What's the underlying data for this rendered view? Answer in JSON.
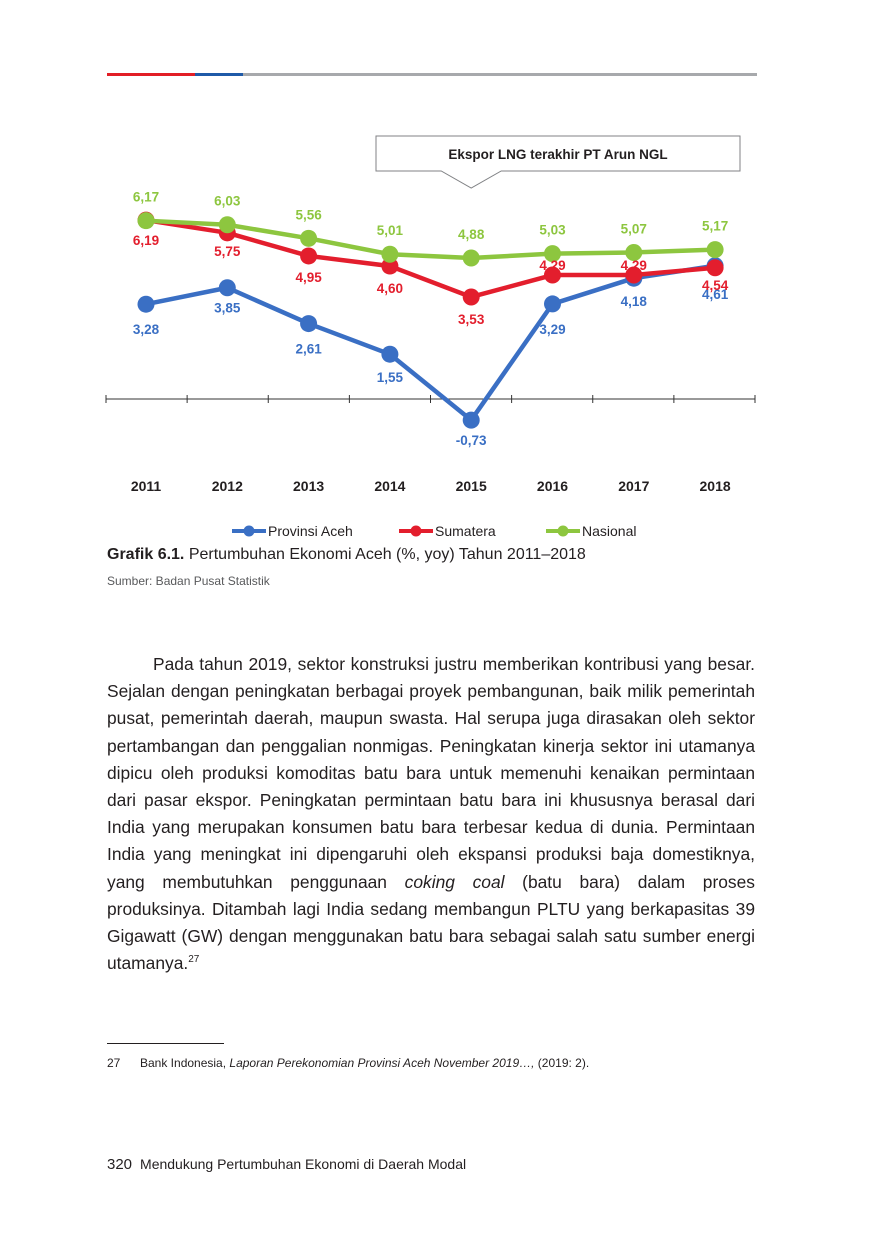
{
  "header_rule": {
    "colors": [
      "#e21e26",
      "#1f5aa8",
      "#a7a9ac"
    ]
  },
  "chart_data": {
    "type": "line",
    "x": [
      "2011",
      "2012",
      "2013",
      "2014",
      "2015",
      "2016",
      "2017",
      "2018"
    ],
    "series": [
      {
        "name": "Provinsi Aceh",
        "color": "#3a6fc4",
        "values": [
          3.28,
          3.85,
          2.61,
          1.55,
          -0.73,
          3.29,
          4.18,
          4.61
        ],
        "labels": [
          "3,28",
          "3,85",
          "2,61",
          "1,55",
          "-0,73",
          "3,29",
          "4,18",
          "4,61"
        ]
      },
      {
        "name": "Sumatera",
        "color": "#e31e2d",
        "values": [
          6.19,
          5.75,
          4.95,
          4.6,
          3.53,
          4.29,
          4.29,
          4.54
        ],
        "labels": [
          "6,19",
          "5,75",
          "4,95",
          "4,60",
          "3,53",
          "4,29",
          "4,29",
          "4,54"
        ]
      },
      {
        "name": "Nasional",
        "color": "#8dc63f",
        "values": [
          6.17,
          6.03,
          5.56,
          5.01,
          4.88,
          5.03,
          5.07,
          5.17
        ],
        "labels": [
          "6,17",
          "6,03",
          "5,56",
          "5,01",
          "4,88",
          "5,03",
          "5,07",
          "5,17"
        ]
      }
    ],
    "annotation": {
      "text": "Ekspor LNG terakhir PT Arun NGL",
      "x": "2015"
    },
    "legend_position": "bottom",
    "grid": false
  },
  "figure": {
    "label": "Grafik 6.1.",
    "title": " Pertumbuhan Ekonomi Aceh (%, yoy) Tahun 2011–2018",
    "source": "Sumber: Badan Pusat Statistik"
  },
  "body": {
    "p1": "Pada tahun 2019, sektor konstruksi justru memberikan kontribusi yang besar. Sejalan dengan peningkatan berbagai proyek pembangunan, baik milik pemerintah pusat, pemerintah daerah, maupun swasta. Hal serupa juga dirasakan oleh sektor pertambangan dan penggalian nonmigas. Peningkatan kinerja sektor ini utamanya dipicu oleh produksi komoditas batu bara untuk memenuhi kenaikan permintaan dari pasar ekspor. Peningkatan permintaan batu bara ini khususnya berasal dari India yang merupakan konsumen batu bara terbesar kedua di dunia. Permintaan India yang meningkat ini dipengaruhi oleh ekspansi produksi baja domestiknya, yang membutuhkan penggunaan ",
    "p1_italic": "coking coal",
    "p1_end": " (batu bara) dalam proses produksinya. Ditambah lagi India sedang membangun PLTU yang berkapasitas 39 Gigawatt (GW) dengan menggunakan batu bara sebagai salah satu sumber energi utamanya.",
    "p1_ref": "27"
  },
  "footnote": {
    "number": "27",
    "author": "Bank Indonesia, ",
    "title": "Laporan Perekonomian Provinsi Aceh November 2019…,",
    "detail": " (2019: 2)."
  },
  "footer": {
    "page_number": "320",
    "running_title": "Mendukung Pertumbuhan Ekonomi di Daerah Modal"
  }
}
